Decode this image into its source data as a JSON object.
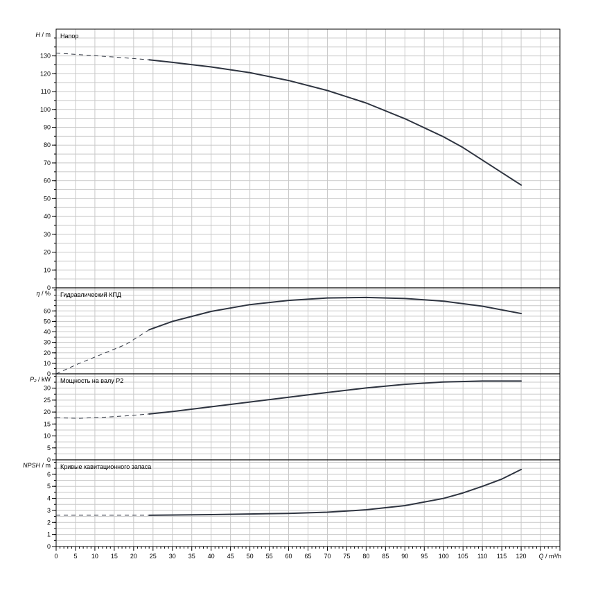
{
  "chart_data": {
    "type": "line",
    "x_axis": {
      "label_var": "Q",
      "label_unit": "m³/h",
      "range": [
        0,
        130
      ],
      "major_step": 5,
      "minor_step": 1,
      "ticks": [
        0,
        5,
        10,
        15,
        20,
        25,
        30,
        35,
        40,
        45,
        50,
        55,
        60,
        65,
        70,
        75,
        80,
        85,
        90,
        95,
        100,
        105,
        110,
        115,
        120
      ]
    },
    "panels": [
      {
        "id": "head",
        "title": "Напор",
        "y_var": "H",
        "y_unit": "m",
        "y_range": [
          0,
          145
        ],
        "y_ticks": [
          0,
          10,
          20,
          30,
          40,
          50,
          60,
          70,
          80,
          90,
          100,
          110,
          120,
          130
        ],
        "y_minor_step": 5,
        "solid_points": [
          [
            24,
            127.8
          ],
          [
            30,
            126.4
          ],
          [
            40,
            123.8
          ],
          [
            50,
            120.6
          ],
          [
            60,
            116.2
          ],
          [
            70,
            110.6
          ],
          [
            80,
            103.6
          ],
          [
            90,
            94.8
          ],
          [
            100,
            84.6
          ],
          [
            105,
            78.6
          ],
          [
            110,
            71.6
          ],
          [
            115,
            64.6
          ],
          [
            120,
            57.6
          ]
        ],
        "dashed_points": [
          [
            0,
            131.6
          ],
          [
            8,
            130.4
          ],
          [
            16,
            129.2
          ],
          [
            24,
            127.8
          ]
        ]
      },
      {
        "id": "efficiency",
        "title": "Гидравлический КПД",
        "y_var": "η",
        "y_unit": "%",
        "y_range": [
          0,
          82
        ],
        "y_ticks": [
          0,
          10,
          20,
          30,
          40,
          50,
          60
        ],
        "y_minor_step": 5,
        "solid_points": [
          [
            24,
            42
          ],
          [
            30,
            50
          ],
          [
            40,
            59.5
          ],
          [
            50,
            66
          ],
          [
            60,
            70
          ],
          [
            70,
            72.3
          ],
          [
            80,
            72.8
          ],
          [
            90,
            71.8
          ],
          [
            100,
            69.3
          ],
          [
            110,
            64.5
          ],
          [
            120,
            57.5
          ]
        ],
        "dashed_points": [
          [
            0,
            0
          ],
          [
            6,
            10
          ],
          [
            12,
            19
          ],
          [
            18,
            28
          ],
          [
            24,
            42
          ]
        ]
      },
      {
        "id": "power",
        "title": "Мощность на валу P2",
        "y_var": "P₂",
        "y_unit": "kW",
        "y_range": [
          0,
          36
        ],
        "y_ticks": [
          0,
          5,
          10,
          15,
          20,
          25,
          30
        ],
        "y_minor_step": 2.5,
        "solid_points": [
          [
            24,
            19.2
          ],
          [
            30,
            20.2
          ],
          [
            40,
            22.2
          ],
          [
            50,
            24.2
          ],
          [
            60,
            26.2
          ],
          [
            70,
            28.2
          ],
          [
            80,
            30.1
          ],
          [
            90,
            31.6
          ],
          [
            100,
            32.6
          ],
          [
            110,
            33
          ],
          [
            120,
            33
          ]
        ],
        "dashed_points": [
          [
            0,
            17.6
          ],
          [
            6,
            17.4
          ],
          [
            12,
            17.8
          ],
          [
            18,
            18.4
          ],
          [
            24,
            19.2
          ]
        ]
      },
      {
        "id": "npsh",
        "title": "Кривые кавитационного запаса",
        "y_var": "NPSH",
        "y_unit": "m",
        "y_range": [
          0,
          7.2
        ],
        "y_ticks": [
          0,
          1,
          2,
          3,
          4,
          5,
          6
        ],
        "y_minor_step": 0.5,
        "solid_points": [
          [
            24,
            2.6
          ],
          [
            40,
            2.65
          ],
          [
            60,
            2.75
          ],
          [
            70,
            2.85
          ],
          [
            80,
            3.05
          ],
          [
            90,
            3.4
          ],
          [
            100,
            4.0
          ],
          [
            105,
            4.45
          ],
          [
            110,
            5.0
          ],
          [
            115,
            5.6
          ],
          [
            120,
            6.4
          ]
        ],
        "dashed_points": [
          [
            0,
            2.6
          ],
          [
            12,
            2.6
          ],
          [
            24,
            2.6
          ]
        ]
      }
    ]
  }
}
